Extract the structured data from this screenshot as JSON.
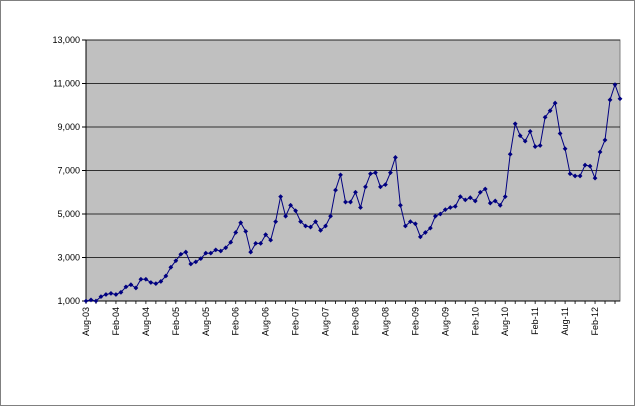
{
  "chart_data": {
    "type": "line",
    "title": "",
    "xlabel": "",
    "ylabel": "",
    "ylim": [
      1000,
      13000
    ],
    "y_ticks": [
      "1,000",
      "3,000",
      "5,000",
      "7,000",
      "9,000",
      "11,000",
      "13,000"
    ],
    "y_tick_values": [
      1000,
      3000,
      5000,
      7000,
      9000,
      11000,
      13000
    ],
    "x_tick_labels": [
      "Aug-03",
      "Feb-04",
      "Aug-04",
      "Feb-05",
      "Aug-05",
      "Feb-06",
      "Aug-06",
      "Feb-07",
      "Aug-07",
      "Feb-08",
      "Aug-08",
      "Feb-09",
      "Aug-09",
      "Feb-10",
      "Aug-10",
      "Feb-11",
      "Aug-11",
      "Feb-12"
    ],
    "x_start": "Aug-03",
    "x_end": "Aug-12",
    "grid": true,
    "legend": "none",
    "colors": {
      "plot_bg": "#c0c0c0",
      "line": "#000080",
      "grid": "#000000"
    },
    "series": [
      {
        "values": [
          1000,
          1050,
          1000,
          1200,
          1300,
          1350,
          1300,
          1400,
          1650,
          1750,
          1600,
          2000,
          2000,
          1850,
          1800,
          1900,
          2150,
          2550,
          2850,
          3150,
          3250,
          2700,
          2800,
          2950,
          3200,
          3200,
          3350,
          3300,
          3450,
          3700,
          4150,
          4600,
          4200,
          3250,
          3650,
          3650,
          4050,
          3800,
          4650,
          5800,
          4900,
          5400,
          5150,
          4650,
          4450,
          4400,
          4650,
          4250,
          4450,
          4900,
          6100,
          6800,
          5550,
          5550,
          6000,
          5300,
          6250,
          6850,
          6900,
          6250,
          6350,
          6900,
          7600,
          5400,
          4450,
          4650,
          4550,
          3950,
          4150,
          4350,
          4900,
          5000,
          5200,
          5300,
          5350,
          5800,
          5650,
          5750,
          5600,
          6000,
          6150,
          5500,
          5600,
          5400,
          5800,
          7750,
          9150,
          8600,
          8350,
          8800,
          8100,
          8150,
          9450,
          9750,
          10100,
          8700,
          8000,
          6850,
          6750,
          6750,
          7250,
          7200,
          6650,
          7850,
          8400,
          10250,
          10950,
          10300
        ]
      }
    ]
  }
}
